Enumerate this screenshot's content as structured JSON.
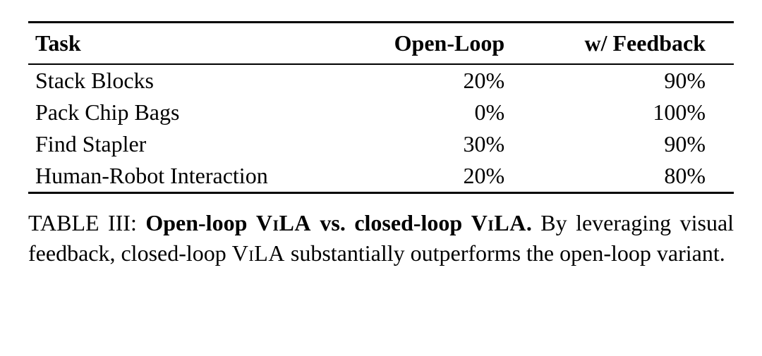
{
  "table": {
    "columns": [
      "Task",
      "Open-Loop",
      "w/ Feedback"
    ],
    "rows": [
      [
        "Stack Blocks",
        "20%",
        "90%"
      ],
      [
        "Pack Chip Bags",
        "0%",
        "100%"
      ],
      [
        "Find Stapler",
        "30%",
        "90%"
      ],
      [
        "Human-Robot Interaction",
        "20%",
        "80%"
      ]
    ],
    "border_color": "#000000",
    "font_family": "Times New Roman",
    "header_fontsize": 32,
    "cell_fontsize": 32,
    "background_color": "#ffffff"
  },
  "caption": {
    "label": "TABLE III:",
    "title_pre": "Open-loop ",
    "title_sc1": "ViLA",
    "title_mid": " vs. closed-loop ",
    "title_sc2": "ViLA",
    "title_post": ".",
    "body_pre": " By leveraging visual feedback, closed-loop ",
    "body_sc": "ViLA",
    "body_post": " substantially outperforms the open-loop variant.",
    "fontsize": 32
  }
}
